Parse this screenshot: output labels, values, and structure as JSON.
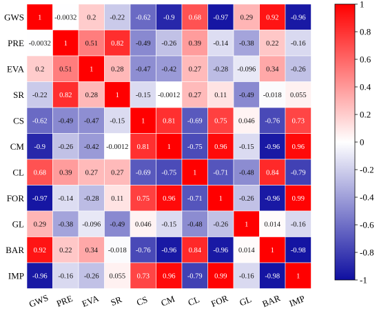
{
  "chart_data": {
    "type": "heatmap",
    "title": "",
    "xlabel": "",
    "ylabel": "",
    "x_categories": [
      "GWS",
      "PRE",
      "EVA",
      "SR",
      "CS",
      "CM",
      "CL",
      "FOR",
      "GL",
      "BAR",
      "IMP"
    ],
    "y_categories": [
      "GWS",
      "PRE",
      "EVA",
      "SR",
      "CS",
      "CM",
      "CL",
      "FOR",
      "GL",
      "BAR",
      "IMP"
    ],
    "values": [
      [
        "1",
        "-0.0032",
        "0.2",
        "-0.22",
        "-0.62",
        "-0.9",
        "0.68",
        "-0.97",
        "0.29",
        "0.92",
        "-0.96"
      ],
      [
        "-0.0032",
        "1",
        "0.51",
        "0.82",
        "-0.49",
        "-0.26",
        "0.39",
        "-0.14",
        "-0.38",
        "0.22",
        "-0.16"
      ],
      [
        "0.2",
        "0.51",
        "1",
        "0.28",
        "-0.47",
        "-0.42",
        "0.27",
        "-0.28",
        "-0.096",
        "0.34",
        "-0.26"
      ],
      [
        "-0.22",
        "0.82",
        "0.28",
        "1",
        "-0.15",
        "-0.0012",
        "0.27",
        "0.11",
        "-0.49",
        "-0.018",
        "0.055"
      ],
      [
        "-0.62",
        "-0.49",
        "-0.47",
        "-0.15",
        "1",
        "0.81",
        "-0.69",
        "0.75",
        "0.046",
        "-0.76",
        "0.73"
      ],
      [
        "-0.9",
        "-0.26",
        "-0.42",
        "-0.0012",
        "0.81",
        "1",
        "-0.75",
        "0.96",
        "-0.15",
        "-0.96",
        "0.96"
      ],
      [
        "0.68",
        "0.39",
        "0.27",
        "0.27",
        "-0.69",
        "-0.75",
        "1",
        "-0.71",
        "-0.48",
        "0.84",
        "-0.79"
      ],
      [
        "-0.97",
        "-0.14",
        "-0.28",
        "0.11",
        "0.75",
        "0.96",
        "-0.71",
        "1",
        "-0.26",
        "-0.96",
        "0.99"
      ],
      [
        "0.29",
        "-0.38",
        "-0.096",
        "-0.49",
        "0.046",
        "-0.15",
        "-0.48",
        "-0.26",
        "1",
        "0.014",
        "-0.16"
      ],
      [
        "0.92",
        "0.22",
        "0.34",
        "-0.018",
        "-0.76",
        "-0.96",
        "0.84",
        "-0.96",
        "0.014",
        "1",
        "-0.98"
      ],
      [
        "-0.96",
        "-0.16",
        "-0.26",
        "0.055",
        "0.73",
        "0.96",
        "-0.79",
        "0.99",
        "-0.16",
        "-0.98",
        "1"
      ]
    ],
    "colorbar": {
      "range": [
        -1,
        1
      ],
      "ticks": [
        "1",
        "0.8",
        "0.6",
        "0.4",
        "0.2",
        "0",
        "-0.2",
        "-0.4",
        "-0.6",
        "-0.8",
        "-1"
      ]
    },
    "colors": {
      "negative": "#0f0fa0",
      "zero": "#ffffff",
      "positive": "#ff0000"
    },
    "grid": true,
    "legend_position": "right"
  }
}
